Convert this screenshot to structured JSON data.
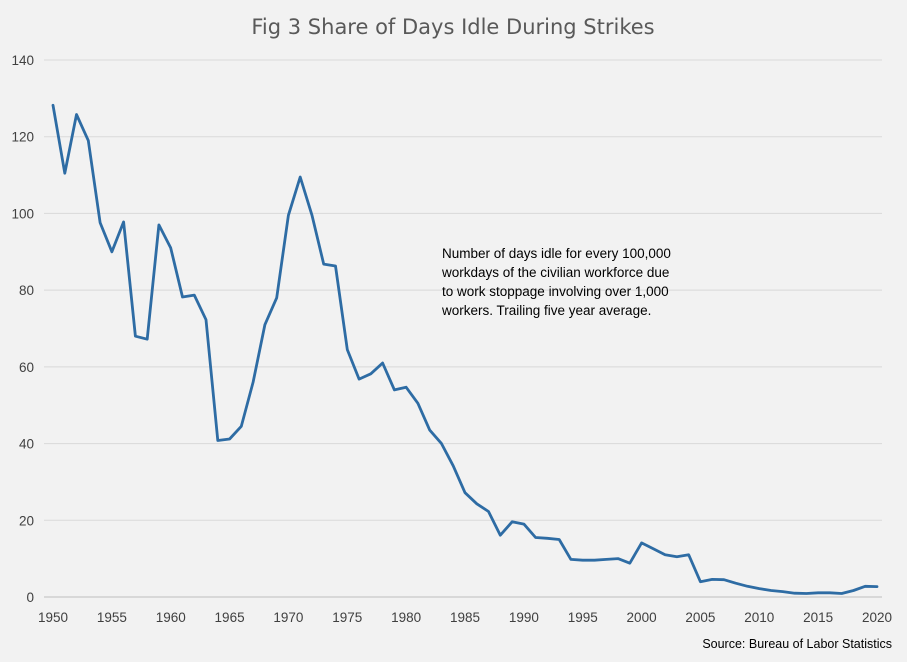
{
  "chart_data": {
    "type": "line",
    "title": "Fig 3 Share of Days Idle During Strikes",
    "xlabel": "",
    "ylabel": "",
    "xlim": [
      1950,
      2020
    ],
    "ylim": [
      0,
      140
    ],
    "x_ticks": [
      "1950",
      "1955",
      "1960",
      "1965",
      "1970",
      "1975",
      "1980",
      "1985",
      "1990",
      "1995",
      "2000",
      "2005",
      "2010",
      "2015",
      "2020"
    ],
    "y_ticks": [
      "0",
      "20",
      "40",
      "60",
      "80",
      "100",
      "120",
      "140"
    ],
    "grid": "horizontal",
    "annotation": [
      "Number of days idle for every 100,000",
      "workdays of the civilian workforce due",
      "to work stoppage involving over 1,000",
      "workers. Trailing five year average."
    ],
    "source": "Source: Bureau of Labor Statistics",
    "colors": {
      "line": "#2e6ca4",
      "background": "#f2f2f2",
      "grid": "#d9d9d9"
    },
    "series": [
      {
        "x": [
          1950,
          1951,
          1952,
          1953,
          1954,
          1955,
          1956,
          1957,
          1958,
          1959,
          1960,
          1961,
          1962,
          1963,
          1964,
          1965,
          1966,
          1967,
          1968,
          1969,
          1970,
          1971,
          1972,
          1973,
          1974,
          1975,
          1976,
          1977,
          1978,
          1979,
          1980,
          1981,
          1982,
          1983,
          1984,
          1985,
          1986,
          1987,
          1988,
          1989,
          1990,
          1991,
          1992,
          1993,
          1994,
          1995,
          1996,
          1997,
          1998,
          1999,
          2000,
          2001,
          2002,
          2003,
          2004,
          2005,
          2006,
          2007,
          2008,
          2009,
          2010,
          2011,
          2012,
          2013,
          2014,
          2015,
          2016,
          2017,
          2018,
          2019,
          2020
        ],
        "values": [
          128.2,
          110.5,
          125.8,
          119.0,
          97.6,
          90.0,
          97.8,
          68.0,
          67.2,
          97.0,
          91.0,
          78.2,
          78.7,
          72.3,
          40.8,
          41.2,
          44.5,
          56.0,
          71.0,
          78.0,
          99.5,
          109.5,
          99.5,
          86.8,
          86.3,
          64.5,
          56.8,
          58.2,
          61.0,
          54.0,
          54.7,
          50.5,
          43.5,
          40.0,
          34.2,
          27.2,
          24.3,
          22.3,
          16.1,
          19.6,
          19.0,
          15.5,
          15.3,
          15.0,
          9.8,
          9.6,
          9.6,
          9.8,
          10.0,
          8.8,
          14.1,
          12.6,
          11.0,
          10.5,
          11.0,
          4.0,
          4.6,
          4.5,
          3.6,
          2.8,
          2.2,
          1.7,
          1.4,
          1.0,
          0.9,
          1.1,
          1.1,
          0.9,
          1.7,
          2.8,
          2.7
        ]
      }
    ]
  }
}
